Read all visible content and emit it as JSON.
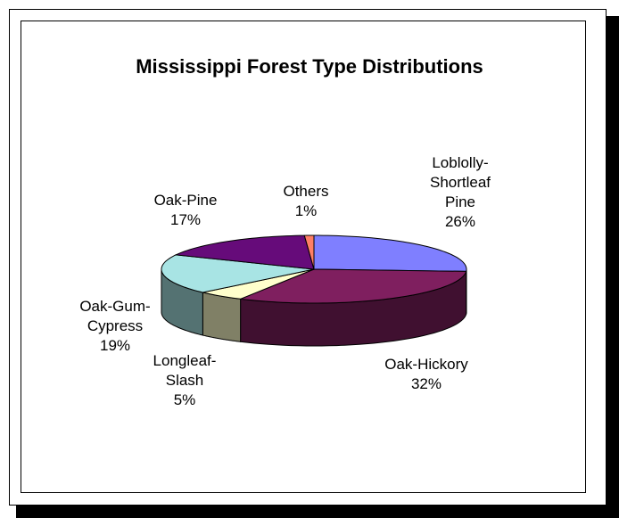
{
  "chart_data": {
    "type": "pie",
    "three_d": true,
    "title": "Mississippi Forest Type Distributions",
    "slices": [
      {
        "label_lines": [
          "Loblolly-",
          "Shortleaf",
          "Pine"
        ],
        "percent_label": "26%",
        "value": 26,
        "color": "#7f7fff"
      },
      {
        "label_lines": [
          "Oak-Hickory"
        ],
        "percent_label": "32%",
        "value": 32,
        "color": "#7f1f5f"
      },
      {
        "label_lines": [
          "Longleaf-",
          "Slash"
        ],
        "percent_label": "5%",
        "value": 5,
        "color": "#ffffcc"
      },
      {
        "label_lines": [
          "Oak-Gum-",
          "Cypress"
        ],
        "percent_label": "19%",
        "value": 19,
        "color": "#a8e4e4"
      },
      {
        "label_lines": [
          "Oak-Pine"
        ],
        "percent_label": "17%",
        "value": 17,
        "color": "#660b7a"
      },
      {
        "label_lines": [
          "Others"
        ],
        "percent_label": "1%",
        "value": 1,
        "color": "#ff7f66"
      }
    ]
  }
}
